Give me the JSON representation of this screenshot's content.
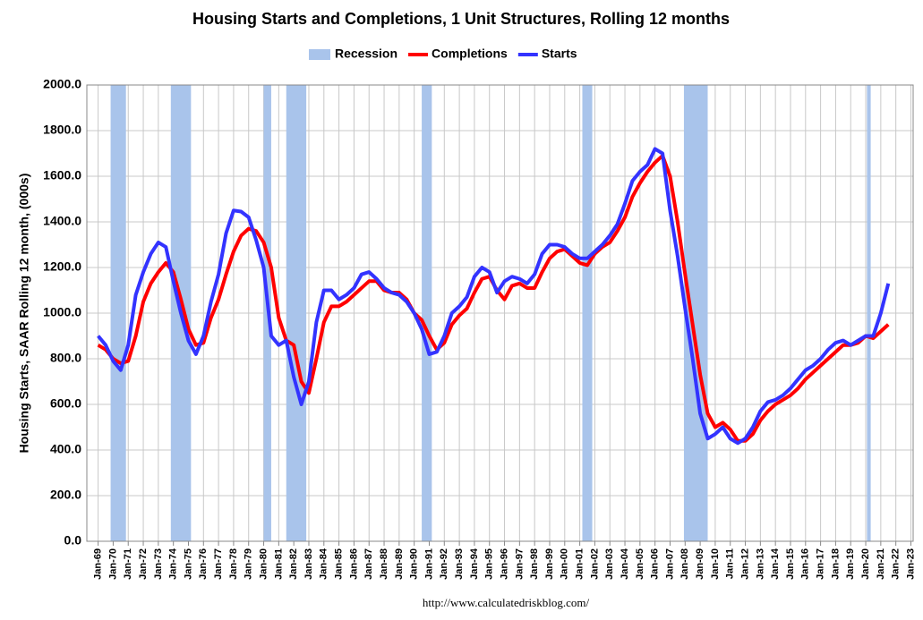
{
  "chart_data": {
    "type": "line",
    "title": "Housing Starts and Completions, 1 Unit Structures, Rolling 12 months",
    "y_label": "Housing Starts, SAAR Rolling 12 month, (000s)",
    "source": "http://www.calculatedriskblog.com/",
    "legend": "top",
    "grid": true,
    "recessions": {
      "name": "Recession",
      "color": "#a9c4eb",
      "periods": [
        [
          1969.83,
          1970.85
        ],
        [
          1973.83,
          1975.17
        ],
        [
          1980.0,
          1980.5
        ],
        [
          1981.5,
          1982.83
        ],
        [
          1990.5,
          1991.17
        ],
        [
          2001.17,
          2001.83
        ],
        [
          2007.92,
          2009.5
        ],
        [
          2020.08,
          2020.33
        ]
      ]
    },
    "xlim": [
      1968.25,
      2023.15
    ],
    "ylim": [
      0,
      2000
    ],
    "yticks": [
      {
        "value": 0,
        "label": "0.0"
      },
      {
        "value": 200,
        "label": "200.0"
      },
      {
        "value": 400,
        "label": "400.0"
      },
      {
        "value": 600,
        "label": "600.0"
      },
      {
        "value": 800,
        "label": "800.0"
      },
      {
        "value": 1000,
        "label": "1000.0"
      },
      {
        "value": 1200,
        "label": "1200.0"
      },
      {
        "value": 1400,
        "label": "1400.0"
      },
      {
        "value": 1600,
        "label": "1600.0"
      },
      {
        "value": 1800,
        "label": "1800.0"
      },
      {
        "value": 2000,
        "label": "2000.0"
      }
    ],
    "xticks": [
      {
        "value": 1969,
        "label": "Jan-69"
      },
      {
        "value": 1970,
        "label": "Jan-70"
      },
      {
        "value": 1971,
        "label": "Jan-71"
      },
      {
        "value": 1972,
        "label": "Jan-72"
      },
      {
        "value": 1973,
        "label": "Jan-73"
      },
      {
        "value": 1974,
        "label": "Jan-74"
      },
      {
        "value": 1975,
        "label": "Jan-75"
      },
      {
        "value": 1976,
        "label": "Jan-76"
      },
      {
        "value": 1977,
        "label": "Jan-77"
      },
      {
        "value": 1978,
        "label": "Jan-78"
      },
      {
        "value": 1979,
        "label": "Jan-79"
      },
      {
        "value": 1980,
        "label": "Jan-80"
      },
      {
        "value": 1981,
        "label": "Jan-81"
      },
      {
        "value": 1982,
        "label": "Jan-82"
      },
      {
        "value": 1983,
        "label": "Jan-83"
      },
      {
        "value": 1984,
        "label": "Jan-84"
      },
      {
        "value": 1985,
        "label": "Jan-85"
      },
      {
        "value": 1986,
        "label": "Jan-86"
      },
      {
        "value": 1987,
        "label": "Jan-87"
      },
      {
        "value": 1988,
        "label": "Jan-88"
      },
      {
        "value": 1989,
        "label": "Jan-89"
      },
      {
        "value": 1990,
        "label": "Jan-90"
      },
      {
        "value": 1991,
        "label": "Jan-91"
      },
      {
        "value": 1992,
        "label": "Jan-92"
      },
      {
        "value": 1993,
        "label": "Jan-93"
      },
      {
        "value": 1994,
        "label": "Jan-94"
      },
      {
        "value": 1995,
        "label": "Jan-95"
      },
      {
        "value": 1996,
        "label": "Jan-96"
      },
      {
        "value": 1997,
        "label": "Jan-97"
      },
      {
        "value": 1998,
        "label": "Jan-98"
      },
      {
        "value": 1999,
        "label": "Jan-99"
      },
      {
        "value": 2000,
        "label": "Jan-00"
      },
      {
        "value": 2001,
        "label": "Jan-01"
      },
      {
        "value": 2002,
        "label": "Jan-02"
      },
      {
        "value": 2003,
        "label": "Jan-03"
      },
      {
        "value": 2004,
        "label": "Jan-04"
      },
      {
        "value": 2005,
        "label": "Jan-05"
      },
      {
        "value": 2006,
        "label": "Jan-06"
      },
      {
        "value": 2007,
        "label": "Jan-07"
      },
      {
        "value": 2008,
        "label": "Jan-08"
      },
      {
        "value": 2009,
        "label": "Jan-09"
      },
      {
        "value": 2010,
        "label": "Jan-10"
      },
      {
        "value": 2011,
        "label": "Jan-11"
      },
      {
        "value": 2012,
        "label": "Jan-12"
      },
      {
        "value": 2013,
        "label": "Jan-13"
      },
      {
        "value": 2014,
        "label": "Jan-14"
      },
      {
        "value": 2015,
        "label": "Jan-15"
      },
      {
        "value": 2016,
        "label": "Jan-16"
      },
      {
        "value": 2017,
        "label": "Jan-17"
      },
      {
        "value": 2018,
        "label": "Jan-18"
      },
      {
        "value": 2019,
        "label": "Jan-19"
      },
      {
        "value": 2020,
        "label": "Jan-20"
      },
      {
        "value": 2021,
        "label": "Jan-21"
      },
      {
        "value": 2022,
        "label": "Jan-22"
      },
      {
        "value": 2023,
        "label": "Jan-23"
      }
    ],
    "x": [
      1969,
      1969.5,
      1970,
      1970.5,
      1971,
      1971.5,
      1972,
      1972.5,
      1973,
      1973.5,
      1974,
      1974.5,
      1975,
      1975.5,
      1976,
      1976.5,
      1977,
      1977.5,
      1978,
      1978.5,
      1979,
      1979.5,
      1980,
      1980.5,
      1981,
      1981.5,
      1982,
      1982.5,
      1983,
      1983.5,
      1984,
      1984.5,
      1985,
      1985.5,
      1986,
      1986.5,
      1987,
      1987.5,
      1988,
      1988.5,
      1989,
      1989.5,
      1990,
      1990.5,
      1991,
      1991.5,
      1992,
      1992.5,
      1993,
      1993.5,
      1994,
      1994.5,
      1995,
      1995.5,
      1996,
      1996.5,
      1997,
      1997.5,
      1998,
      1998.5,
      1999,
      1999.5,
      2000,
      2000.5,
      2001,
      2001.5,
      2002,
      2002.5,
      2003,
      2003.5,
      2004,
      2004.5,
      2005,
      2005.5,
      2006,
      2006.5,
      2007,
      2007.5,
      2008,
      2008.5,
      2009,
      2009.5,
      2010,
      2010.5,
      2011,
      2011.5,
      2012,
      2012.5,
      2013,
      2013.5,
      2014,
      2014.5,
      2015,
      2015.5,
      2016,
      2016.5,
      2017,
      2017.5,
      2018,
      2018.5,
      2019,
      2019.5,
      2020,
      2020.5,
      2021,
      2021.5
    ],
    "series": [
      {
        "name": "Completions",
        "color": "#ff0000",
        "values": [
          860,
          840,
          800,
          780,
          790,
          900,
          1050,
          1130,
          1180,
          1220,
          1180,
          1060,
          930,
          860,
          870,
          980,
          1060,
          1170,
          1270,
          1340,
          1370,
          1360,
          1310,
          1200,
          980,
          880,
          860,
          700,
          650,
          800,
          960,
          1030,
          1030,
          1050,
          1080,
          1110,
          1140,
          1140,
          1100,
          1090,
          1090,
          1060,
          1000,
          970,
          900,
          840,
          870,
          950,
          990,
          1020,
          1090,
          1150,
          1160,
          1100,
          1060,
          1120,
          1130,
          1110,
          1110,
          1180,
          1240,
          1270,
          1280,
          1250,
          1220,
          1210,
          1260,
          1290,
          1310,
          1360,
          1420,
          1510,
          1570,
          1620,
          1660,
          1690,
          1600,
          1400,
          1170,
          950,
          730,
          560,
          500,
          520,
          490,
          440,
          440,
          470,
          530,
          570,
          600,
          620,
          640,
          670,
          710,
          740,
          770,
          800,
          830,
          860,
          860,
          870,
          900,
          890,
          920,
          950
        ]
      },
      {
        "name": "Starts",
        "color": "#3333ff",
        "values": [
          900,
          860,
          790,
          750,
          860,
          1080,
          1180,
          1260,
          1310,
          1290,
          1140,
          1000,
          880,
          820,
          900,
          1050,
          1170,
          1350,
          1450,
          1445,
          1420,
          1320,
          1200,
          900,
          860,
          880,
          720,
          600,
          700,
          960,
          1100,
          1100,
          1060,
          1080,
          1110,
          1170,
          1180,
          1150,
          1110,
          1090,
          1080,
          1050,
          1000,
          930,
          820,
          830,
          900,
          1000,
          1030,
          1070,
          1160,
          1200,
          1180,
          1090,
          1140,
          1160,
          1150,
          1130,
          1170,
          1260,
          1300,
          1300,
          1290,
          1260,
          1240,
          1240,
          1270,
          1300,
          1340,
          1390,
          1480,
          1580,
          1620,
          1650,
          1720,
          1700,
          1450,
          1250,
          1020,
          800,
          560,
          450,
          470,
          500,
          450,
          430,
          450,
          500,
          570,
          610,
          620,
          640,
          670,
          710,
          750,
          770,
          800,
          840,
          870,
          880,
          860,
          880,
          900,
          900,
          1000,
          1130
        ]
      }
    ]
  }
}
